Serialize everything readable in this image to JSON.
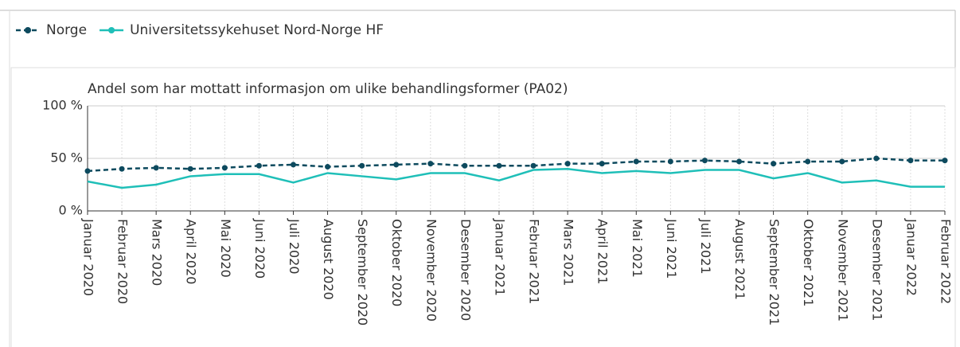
{
  "chart_data": {
    "type": "line",
    "title": "Andel som har mottatt informasjon om ulike behandlingsformer (PA02)",
    "categories": [
      "Januar 2020",
      "Februar 2020",
      "Mars 2020",
      "April 2020",
      "Mai 2020",
      "Juni 2020",
      "Juli 2020",
      "August 2020",
      "September 2020",
      "Oktober 2020",
      "November 2020",
      "Desember 2020",
      "Januar 2021",
      "Februar 2021",
      "Mars 2021",
      "April 2021",
      "Mai 2021",
      "Juni 2021",
      "Juli 2021",
      "August 2021",
      "September 2021",
      "Oktober 2021",
      "November 2021",
      "Desember 2021",
      "Januar 2022",
      "Februar 2022"
    ],
    "series": [
      {
        "name": "Norge",
        "color": "#0d4a5e",
        "values": [
          38,
          40,
          41,
          40,
          41,
          43,
          44,
          42,
          43,
          44,
          45,
          43,
          43,
          43,
          45,
          45,
          47,
          47,
          48,
          47,
          45,
          47,
          47,
          50,
          48,
          48
        ]
      },
      {
        "name": "Universitetssykehuset Nord-Norge HF",
        "color": "#1fbfb8",
        "values": [
          28,
          22,
          25,
          33,
          35,
          35,
          27,
          36,
          33,
          30,
          36,
          36,
          29,
          39,
          40,
          36,
          38,
          36,
          39,
          39,
          31,
          36,
          27,
          29,
          23,
          23
        ]
      }
    ],
    "ylim": [
      0,
      100
    ],
    "yticks": [
      {
        "value": 0,
        "label": "0 %"
      },
      {
        "value": 50,
        "label": "50 %"
      },
      {
        "value": 100,
        "label": "100 %"
      }
    ],
    "grid": true
  }
}
